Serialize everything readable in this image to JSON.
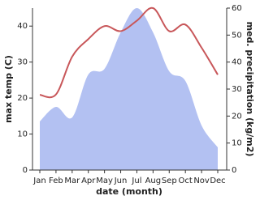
{
  "chart_data": {
    "type": "area-line",
    "categories": [
      "Jan",
      "Feb",
      "Mar",
      "Apr",
      "May",
      "Jun",
      "Jul",
      "Aug",
      "Sep",
      "Oct",
      "Nov",
      "Dec"
    ],
    "x_label": "date (month)",
    "y_label": "max temp (C)",
    "y2_label": "med. precipitation (kg/m2)",
    "ylim": [
      0,
      45
    ],
    "yticks": [
      0,
      10,
      20,
      30,
      40
    ],
    "y2lim": [
      0,
      60
    ],
    "y2ticks": [
      0,
      10,
      20,
      30,
      40,
      50,
      60
    ],
    "series": [
      {
        "name": "med. precipitation",
        "type": "area",
        "axis": "y2",
        "color": "#b3c1f2",
        "values": [
          18,
          23.4,
          19.5,
          35.4,
          37.5,
          51,
          60,
          51,
          36.6,
          33,
          16.5,
          8.4
        ]
      },
      {
        "name": "max temp",
        "type": "line",
        "axis": "y",
        "color": "#c8575a",
        "values": [
          20.9,
          21,
          31.5,
          36.4,
          40,
          38.6,
          41.5,
          45,
          38.6,
          40.4,
          34,
          26.5
        ]
      }
    ]
  }
}
